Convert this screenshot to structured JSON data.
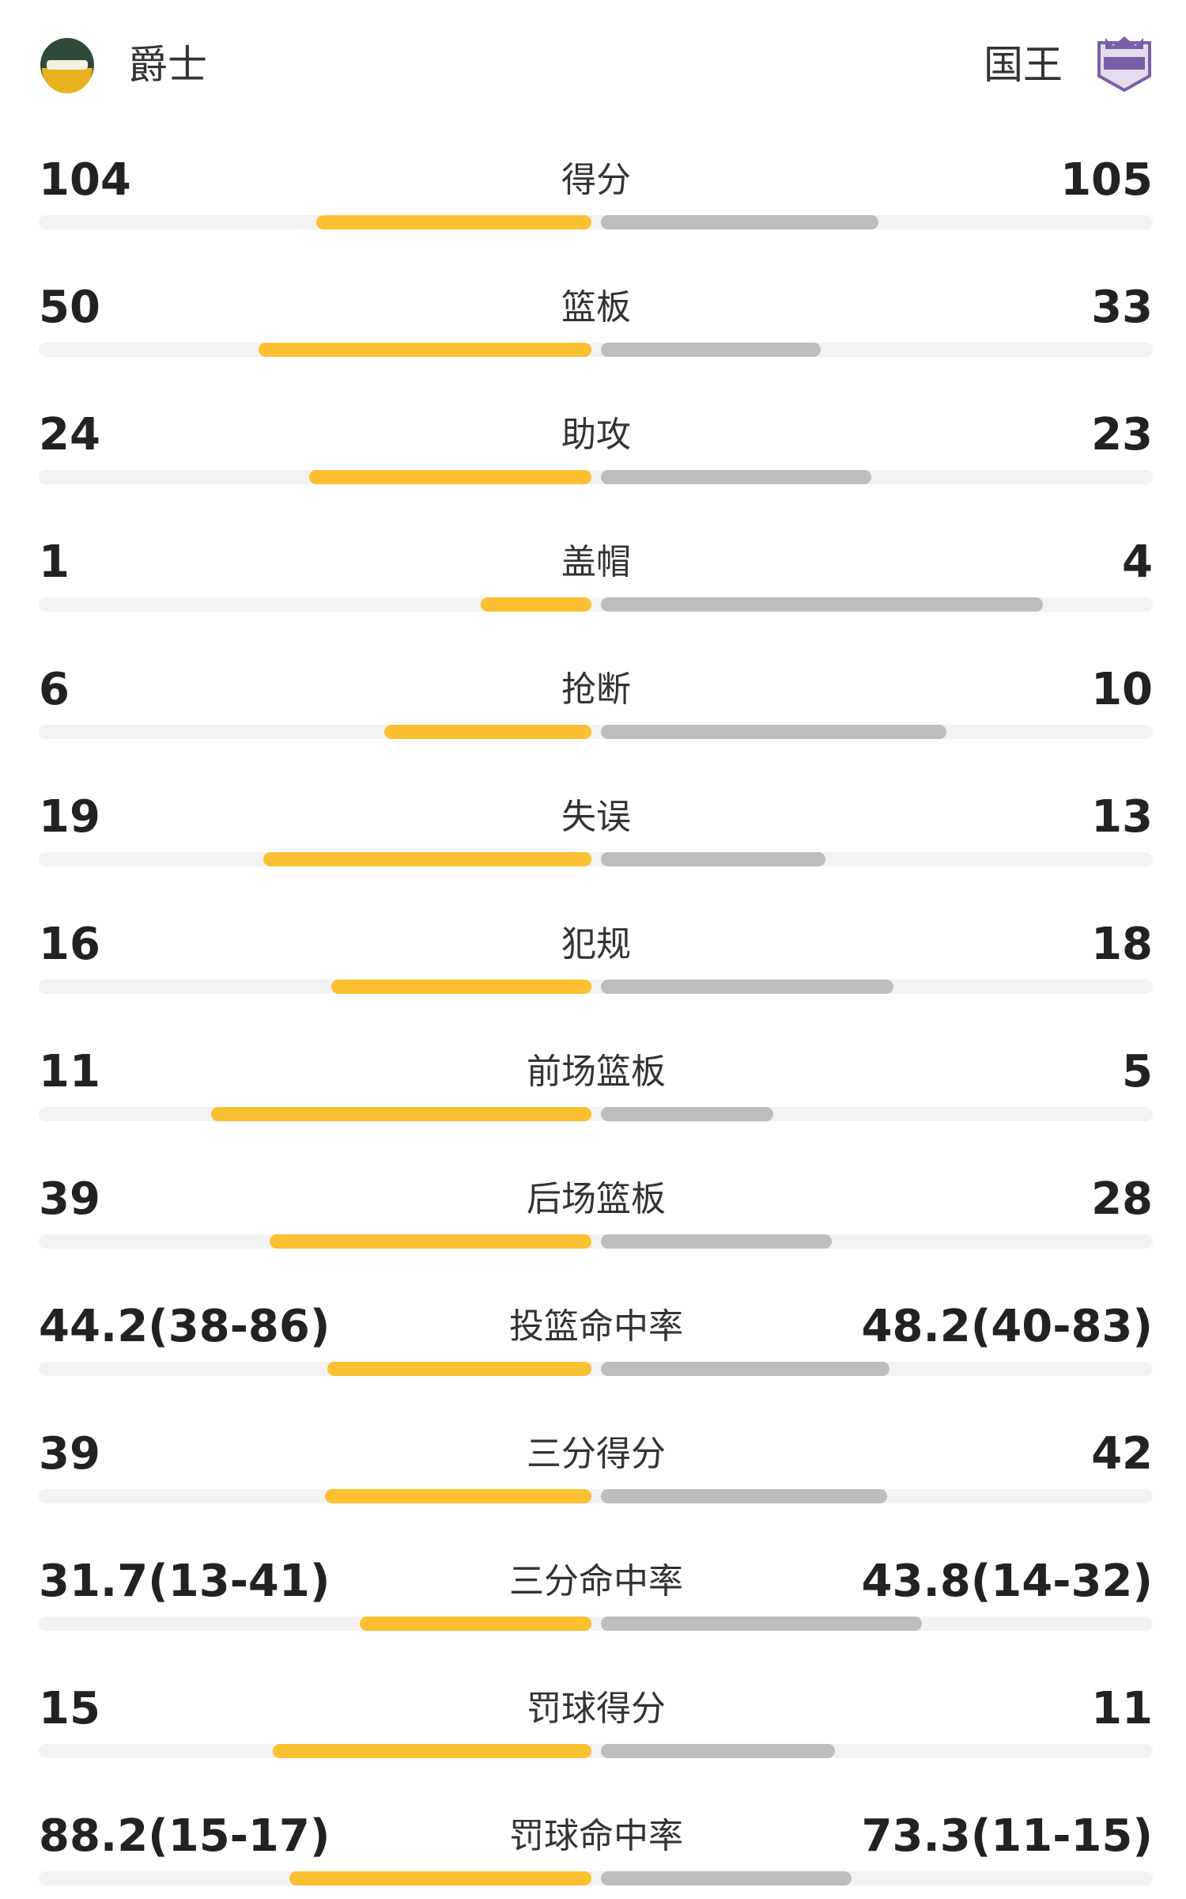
{
  "header": {
    "home": "爵士",
    "away": "国王"
  },
  "rows": [
    {
      "label": "得分",
      "left": 104,
      "right": 105
    },
    {
      "label": "篮板",
      "left": 50,
      "right": 33
    },
    {
      "label": "助攻",
      "left": 24,
      "right": 23
    },
    {
      "label": "盖帽",
      "left": 1,
      "right": 4
    },
    {
      "label": "抢断",
      "left": 6,
      "right": 10
    },
    {
      "label": "失误",
      "left": 19,
      "right": 13
    },
    {
      "label": "犯规",
      "left": 16,
      "right": 18
    },
    {
      "label": "前场篮板",
      "left": 11,
      "right": 5
    },
    {
      "label": "后场篮板",
      "left": 39,
      "right": 28
    },
    {
      "label": "投篮命中率",
      "left": {
        "value": 44.2,
        "label": "44.2(38-86)"
      },
      "right": {
        "value": 48.2,
        "label": "48.2(40-83)"
      }
    },
    {
      "label": "三分得分",
      "left": 39,
      "right": 42
    },
    {
      "label": "三分命中率",
      "left": {
        "value": 31.7,
        "label": "31.7(13-41)"
      },
      "right": {
        "value": 43.8,
        "label": "43.8(14-32)"
      }
    },
    {
      "label": "罚球得分",
      "left": 15,
      "right": 11
    },
    {
      "label": "罚球命中率",
      "left": {
        "value": 88.2,
        "label": "88.2(15-17)"
      },
      "right": {
        "value": 73.3,
        "label": "73.3(11-15)"
      }
    }
  ]
}
